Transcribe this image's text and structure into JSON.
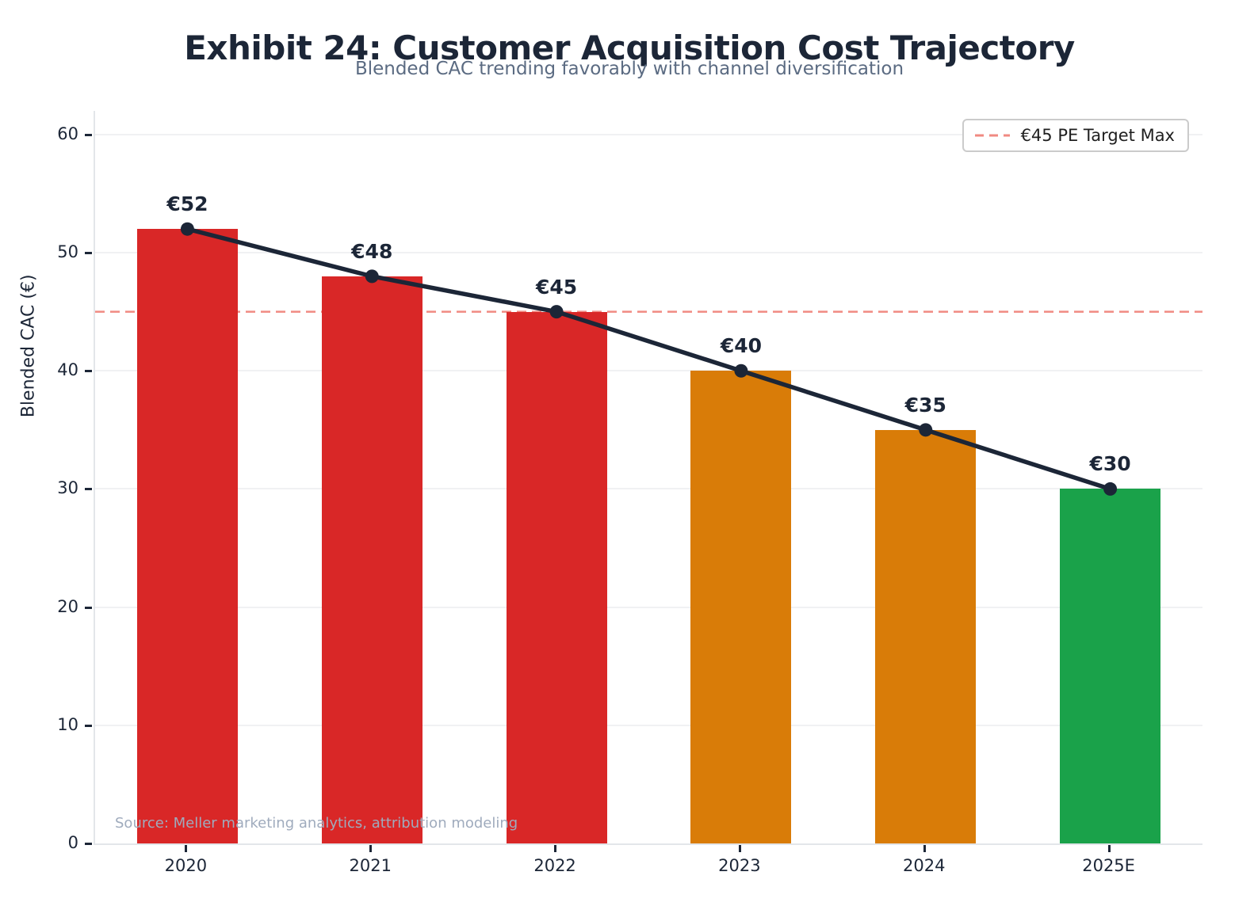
{
  "chart_data": {
    "type": "bar",
    "title": "Exhibit 24: Customer Acquisition Cost Trajectory",
    "subtitle": "Blended CAC trending favorably with channel diversification",
    "categories": [
      "2020",
      "2021",
      "2022",
      "2023",
      "2024",
      "2025E"
    ],
    "values": [
      52,
      48,
      45,
      40,
      35,
      30
    ],
    "value_labels": [
      "€52",
      "€48",
      "€45",
      "€40",
      "€35",
      "€30"
    ],
    "bar_colors": [
      "#d92727",
      "#d92727",
      "#d92727",
      "#d97c08",
      "#d97c08",
      "#1aa24a"
    ],
    "trend_line": {
      "color": "#1c2637",
      "marker": "circle"
    },
    "target_line": {
      "value": 45,
      "style": "dashed",
      "color": "#f08a82",
      "label": "€45 PE Target Max"
    },
    "xlabel": "",
    "ylabel": "Blended CAC (€)",
    "ylim": [
      0,
      62
    ],
    "yticks": [
      0,
      10,
      20,
      30,
      40,
      50,
      60
    ],
    "grid": "horizontal",
    "legend_position": "upper right",
    "source": "Source: Meller marketing analytics, attribution modeling"
  }
}
